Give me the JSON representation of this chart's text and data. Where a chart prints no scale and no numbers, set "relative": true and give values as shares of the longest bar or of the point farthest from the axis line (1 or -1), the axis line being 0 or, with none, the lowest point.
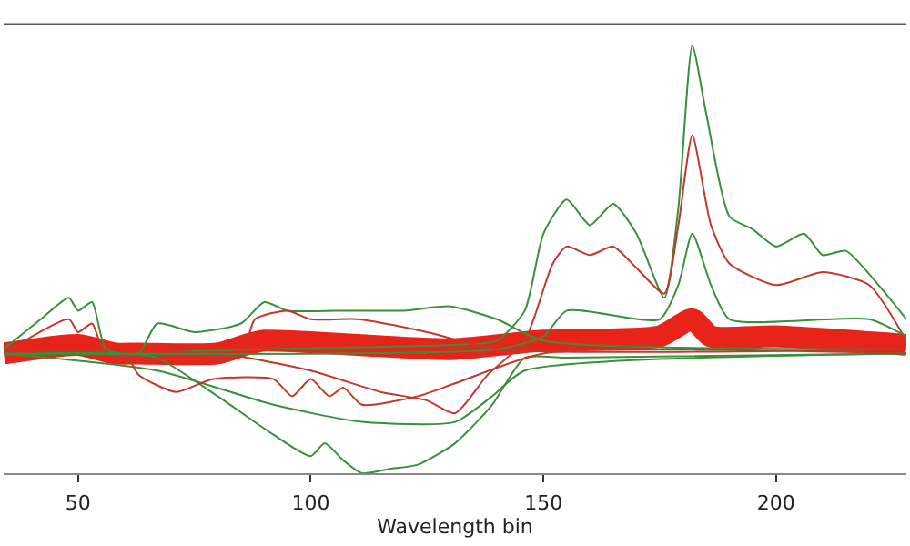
{
  "chart_data": {
    "type": "line",
    "xlabel": "Wavelength bin",
    "relative": true,
    "xlim": [
      34,
      228
    ],
    "xticks": [
      50,
      100,
      150,
      200
    ],
    "grid": false,
    "marker": "none",
    "line_style": "solid",
    "series": [
      {
        "color": "#e8231a",
        "x": [
          34,
          50,
          58,
          63,
          80,
          86,
          90,
          110,
          130,
          150,
          175,
          182,
          186,
          200,
          228
        ],
        "values": [
          0.28,
          0.3,
          0.28,
          0.28,
          0.28,
          0.3,
          0.31,
          0.3,
          0.29,
          0.31,
          0.32,
          0.36,
          0.32,
          0.32,
          0.3
        ]
      },
      {
        "color": "#3a8f3a",
        "x": [
          34,
          60,
          90,
          130,
          140,
          146,
          150,
          155,
          160,
          165,
          170,
          176,
          179,
          182,
          185,
          190,
          195,
          200,
          206,
          210,
          215,
          222,
          228
        ],
        "values": [
          0.28,
          0.28,
          0.29,
          0.3,
          0.31,
          0.38,
          0.56,
          0.64,
          0.58,
          0.63,
          0.56,
          0.41,
          0.62,
          1,
          0.84,
          0.6,
          0.57,
          0.53,
          0.56,
          0.51,
          0.52,
          0.44,
          0.36
        ]
      },
      {
        "color": "#c0392b",
        "x": [
          34,
          80,
          100,
          115,
          125,
          131,
          138,
          146,
          152,
          155,
          160,
          165,
          170,
          176,
          179,
          182,
          186,
          190,
          200,
          210,
          220,
          228
        ],
        "values": [
          0.28,
          0.28,
          0.24,
          0.19,
          0.17,
          0.14,
          0.23,
          0.31,
          0.49,
          0.53,
          0.51,
          0.53,
          0.48,
          0.42,
          0.58,
          0.79,
          0.58,
          0.49,
          0.44,
          0.47,
          0.44,
          0.31
        ]
      },
      {
        "color": "#3a8f3a",
        "x": [
          34,
          60,
          67,
          80,
          92,
          100,
          103,
          107,
          111,
          117,
          123,
          131,
          139,
          146,
          155,
          228
        ],
        "values": [
          0.28,
          0.28,
          0.27,
          0.18,
          0.09,
          0.04,
          0.07,
          0.03,
          0,
          0.01,
          0.02,
          0.07,
          0.16,
          0.27,
          0.27,
          0.28
        ]
      },
      {
        "color": "#3a8f3a",
        "x": [
          34,
          67,
          92,
          111,
          131,
          139,
          146,
          228
        ],
        "values": [
          0.28,
          0.24,
          0.16,
          0.12,
          0.12,
          0.18,
          0.24,
          0.28
        ]
      },
      {
        "color": "#c0392b",
        "x": [
          34,
          60,
          63,
          71,
          79,
          92,
          96,
          100,
          104,
          107,
          111,
          123,
          131,
          150,
          228
        ],
        "values": [
          0.28,
          0.28,
          0.23,
          0.19,
          0.22,
          0.22,
          0.18,
          0.22,
          0.18,
          0.2,
          0.16,
          0.18,
          0.21,
          0.28,
          0.28
        ]
      },
      {
        "color": "#3a8f3a",
        "x": [
          34,
          42,
          48,
          50,
          53,
          56,
          63,
          67,
          75,
          85,
          90,
          95,
          105,
          110,
          120,
          130,
          140,
          150,
          228
        ],
        "values": [
          0.29,
          0.36,
          0.41,
          0.38,
          0.4,
          0.29,
          0.28,
          0.35,
          0.33,
          0.35,
          0.4,
          0.38,
          0.38,
          0.38,
          0.38,
          0.39,
          0.36,
          0.31,
          0.29
        ]
      },
      {
        "color": "#c0392b",
        "x": [
          34,
          48,
          50,
          53,
          56,
          85,
          88,
          95,
          100,
          110,
          125,
          140,
          228
        ],
        "values": [
          0.28,
          0.36,
          0.33,
          0.35,
          0.28,
          0.28,
          0.36,
          0.38,
          0.36,
          0.36,
          0.33,
          0.29,
          0.29
        ]
      },
      {
        "color": "#3a8f3a",
        "x": [
          34,
          140,
          150,
          155,
          175,
          179,
          182,
          186,
          190,
          220,
          228
        ],
        "values": [
          0.28,
          0.29,
          0.32,
          0.38,
          0.36,
          0.44,
          0.56,
          0.44,
          0.36,
          0.36,
          0.32
        ]
      }
    ]
  }
}
